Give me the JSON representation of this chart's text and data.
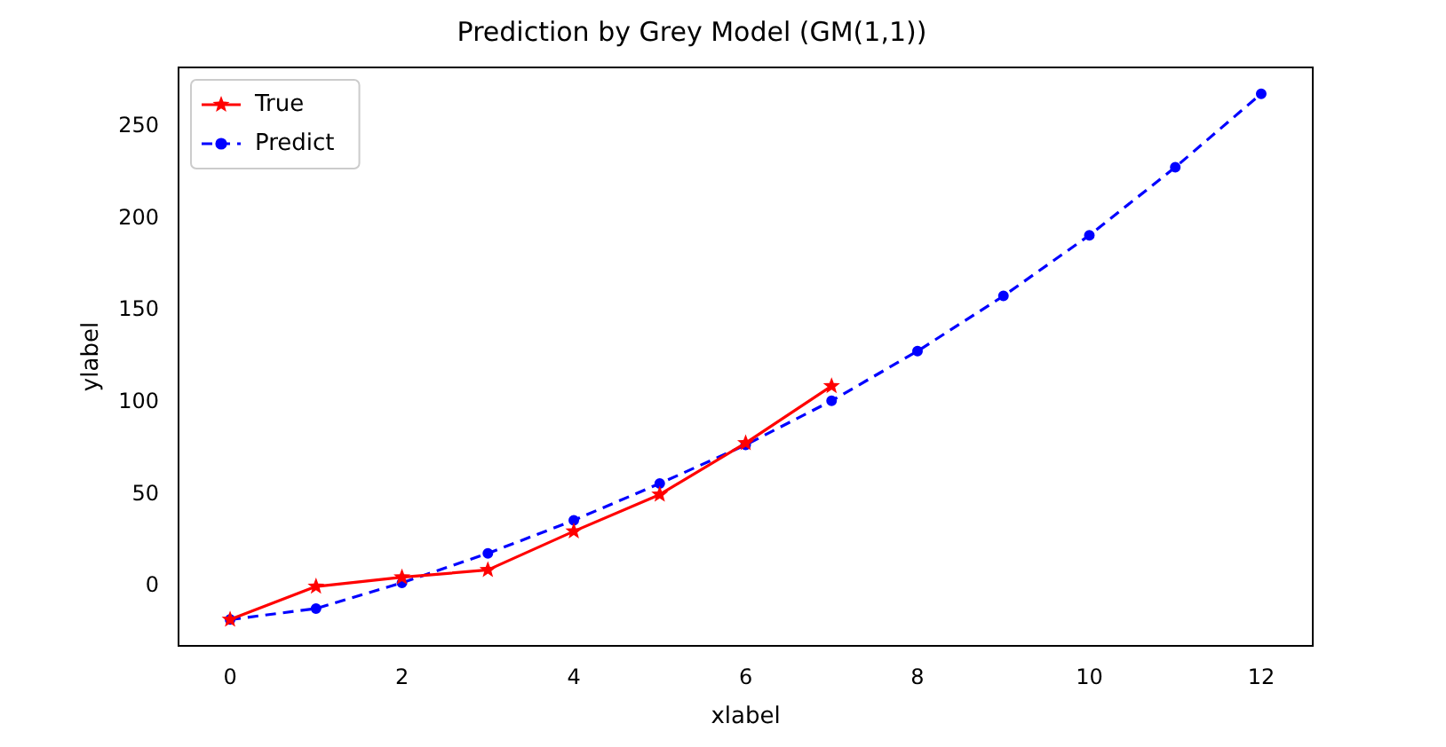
{
  "chart_data": {
    "type": "line",
    "title": "Prediction by Grey Model (GM(1,1))",
    "xlabel": "xlabel",
    "ylabel": "ylabel",
    "xlim": [
      -0.6,
      12.6
    ],
    "xticks": [
      0,
      2,
      4,
      6,
      8,
      10,
      12
    ],
    "ylim": [
      -32.3,
      282.3
    ],
    "yticks": [
      0,
      50,
      100,
      150,
      200,
      250
    ],
    "grid": false,
    "legend": "top left",
    "series": [
      {
        "name": "True",
        "color": "#ff0000",
        "marker": "star",
        "line_style": "solid",
        "x": [
          0,
          1,
          2,
          3,
          4,
          5,
          6,
          7
        ],
        "values": [
          -18,
          0,
          5,
          9,
          30,
          50,
          78,
          109
        ]
      },
      {
        "name": "Predict",
        "color": "#0000ff",
        "marker": "circle",
        "line_style": "dashed",
        "x": [
          0,
          1,
          2,
          3,
          4,
          5,
          6,
          7,
          8,
          9,
          10,
          11,
          12
        ],
        "values": [
          -18,
          -12,
          2,
          18,
          36,
          56,
          77,
          101,
          128,
          158,
          191,
          228,
          268
        ]
      }
    ]
  }
}
